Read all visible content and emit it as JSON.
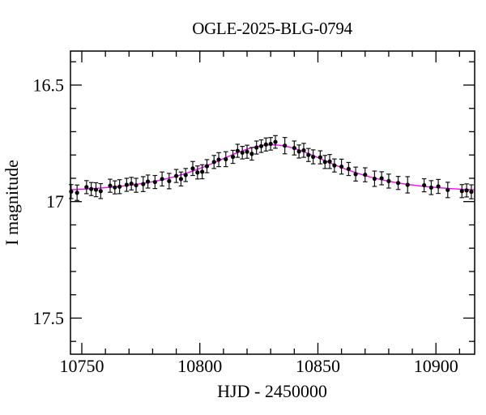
{
  "window": {
    "background": "#ffffff"
  },
  "chart_data": {
    "type": "scatter",
    "title": "OGLE-2025-BLG-0794",
    "xlabel": "HJD - 2450000",
    "ylabel": "I magnitude",
    "legend": "none",
    "grid": false,
    "x_range": [
      10745.2,
      10916.4
    ],
    "y_range": [
      16.354,
      17.655
    ],
    "y_inverted": true,
    "x_axis": {
      "major_ticks": [
        {
          "value": 10750,
          "label": "10750"
        },
        {
          "value": 10800,
          "label": "10800"
        },
        {
          "value": 10850,
          "label": "10850"
        },
        {
          "value": 10900,
          "label": "10900"
        }
      ],
      "minor_step": 10
    },
    "y_axis": {
      "major_ticks": [
        {
          "value": 16.5,
          "label": "16.5"
        },
        {
          "value": 17.0,
          "label": "17"
        },
        {
          "value": 17.5,
          "label": "17.5"
        }
      ],
      "minor_step": 0.1
    },
    "colors": {
      "data_points": "#000000",
      "error_bars": "#111111",
      "model_curve": "#ff00ff",
      "frame": "#000000"
    },
    "model": {
      "type": "paczynski",
      "t0": 10830.5,
      "tE": 27.6,
      "u0": 1.25,
      "I_base": 16.962,
      "peak_mag": 16.756
    },
    "points_format": [
      "hjd_minus_2450000",
      "I_mag",
      "error"
    ],
    "points": [
      [
        10745.5,
        16.957,
        0.03
      ],
      [
        10748,
        16.962,
        0.033
      ],
      [
        10752,
        16.938,
        0.028
      ],
      [
        10754,
        16.946,
        0.028
      ],
      [
        10756,
        16.949,
        0.03
      ],
      [
        10758,
        16.955,
        0.032
      ],
      [
        10762,
        16.932,
        0.028
      ],
      [
        10764,
        16.939,
        0.028
      ],
      [
        10766,
        16.936,
        0.03
      ],
      [
        10769,
        16.928,
        0.028
      ],
      [
        10771,
        16.923,
        0.027
      ],
      [
        10773,
        16.93,
        0.03
      ],
      [
        10776,
        16.925,
        0.032
      ],
      [
        10778,
        16.914,
        0.028
      ],
      [
        10781,
        16.916,
        0.028
      ],
      [
        10784,
        16.903,
        0.03
      ],
      [
        10787,
        16.912,
        0.033
      ],
      [
        10790,
        16.89,
        0.028
      ],
      [
        10792,
        16.903,
        0.03
      ],
      [
        10794,
        16.886,
        0.028
      ],
      [
        10797,
        16.858,
        0.03
      ],
      [
        10799,
        16.875,
        0.028
      ],
      [
        10801,
        16.872,
        0.03
      ],
      [
        10803,
        16.848,
        0.028
      ],
      [
        10806,
        16.83,
        0.028
      ],
      [
        10808,
        16.82,
        0.03
      ],
      [
        10811,
        16.818,
        0.032
      ],
      [
        10814,
        16.808,
        0.028
      ],
      [
        10816,
        16.782,
        0.028
      ],
      [
        10818,
        16.79,
        0.027
      ],
      [
        10820,
        16.786,
        0.028
      ],
      [
        10822,
        16.795,
        0.027
      ],
      [
        10824,
        16.768,
        0.028
      ],
      [
        10826,
        16.762,
        0.027
      ],
      [
        10828,
        16.755,
        0.028
      ],
      [
        10830,
        16.752,
        0.027
      ],
      [
        10832,
        16.744,
        0.027
      ],
      [
        10836,
        16.76,
        0.035
      ],
      [
        10840,
        16.77,
        0.03
      ],
      [
        10842,
        16.785,
        0.028
      ],
      [
        10844,
        16.78,
        0.03
      ],
      [
        10846,
        16.8,
        0.028
      ],
      [
        10848,
        16.808,
        0.03
      ],
      [
        10851,
        16.81,
        0.028
      ],
      [
        10853,
        16.83,
        0.028
      ],
      [
        10855,
        16.828,
        0.03
      ],
      [
        10857,
        16.845,
        0.028
      ],
      [
        10860,
        16.85,
        0.032
      ],
      [
        10863,
        16.86,
        0.028
      ],
      [
        10866,
        16.882,
        0.03
      ],
      [
        10870,
        16.885,
        0.03
      ],
      [
        10874,
        16.902,
        0.033
      ],
      [
        10877,
        16.9,
        0.028
      ],
      [
        10880,
        16.912,
        0.03
      ],
      [
        10884,
        16.92,
        0.028
      ],
      [
        10888,
        16.928,
        0.035
      ],
      [
        10895,
        16.93,
        0.028
      ],
      [
        10898,
        16.94,
        0.03
      ],
      [
        10901,
        16.935,
        0.03
      ],
      [
        10905,
        16.95,
        0.033
      ],
      [
        10911,
        16.955,
        0.028
      ],
      [
        10913,
        16.952,
        0.028
      ],
      [
        10915,
        16.958,
        0.03
      ]
    ]
  }
}
